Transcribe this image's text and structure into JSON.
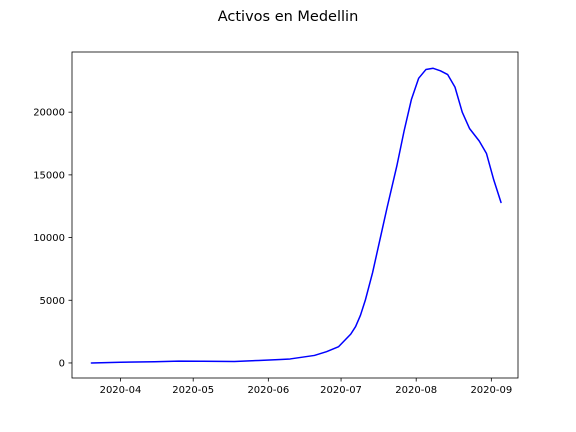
{
  "chart_data": {
    "type": "line",
    "title": "Activos en Medellin",
    "xlabel": "",
    "ylabel": "",
    "grid": false,
    "xlim": [
      "2020-03-12",
      "2020-09-12"
    ],
    "ylim": [
      -1200,
      24800
    ],
    "x_ticks": [
      "2020-04-01",
      "2020-05-01",
      "2020-06-01",
      "2020-07-01",
      "2020-08-01",
      "2020-09-01"
    ],
    "x_tick_labels": [
      "2020-04",
      "2020-05",
      "2020-06",
      "2020-07",
      "2020-08",
      "2020-09"
    ],
    "y_ticks": [
      0,
      5000,
      10000,
      15000,
      20000
    ],
    "y_tick_labels": [
      "0",
      "5000",
      "10000",
      "15000",
      "20000"
    ],
    "series": [
      {
        "color": "#0000ff",
        "points": [
          [
            "2020-03-20",
            0
          ],
          [
            "2020-04-01",
            60
          ],
          [
            "2020-04-15",
            100
          ],
          [
            "2020-04-25",
            150
          ],
          [
            "2020-05-05",
            140
          ],
          [
            "2020-05-18",
            120
          ],
          [
            "2020-05-28",
            200
          ],
          [
            "2020-06-06",
            280
          ],
          [
            "2020-06-10",
            320
          ],
          [
            "2020-06-20",
            600
          ],
          [
            "2020-06-25",
            900
          ],
          [
            "2020-06-30",
            1300
          ],
          [
            "2020-07-02",
            1700
          ],
          [
            "2020-07-05",
            2300
          ],
          [
            "2020-07-07",
            2900
          ],
          [
            "2020-07-09",
            3800
          ],
          [
            "2020-07-11",
            5000
          ],
          [
            "2020-07-14",
            7200
          ],
          [
            "2020-07-17",
            9800
          ],
          [
            "2020-07-20",
            12400
          ],
          [
            "2020-07-24",
            15700
          ],
          [
            "2020-07-27",
            18500
          ],
          [
            "2020-07-30",
            21000
          ],
          [
            "2020-08-02",
            22700
          ],
          [
            "2020-08-05",
            23400
          ],
          [
            "2020-08-08",
            23500
          ],
          [
            "2020-08-11",
            23300
          ],
          [
            "2020-08-14",
            23000
          ],
          [
            "2020-08-17",
            22000
          ],
          [
            "2020-08-20",
            20000
          ],
          [
            "2020-08-23",
            18700
          ],
          [
            "2020-08-27",
            17700
          ],
          [
            "2020-08-30",
            16700
          ],
          [
            "2020-09-02",
            14600
          ],
          [
            "2020-09-05",
            12800
          ]
        ]
      }
    ]
  }
}
